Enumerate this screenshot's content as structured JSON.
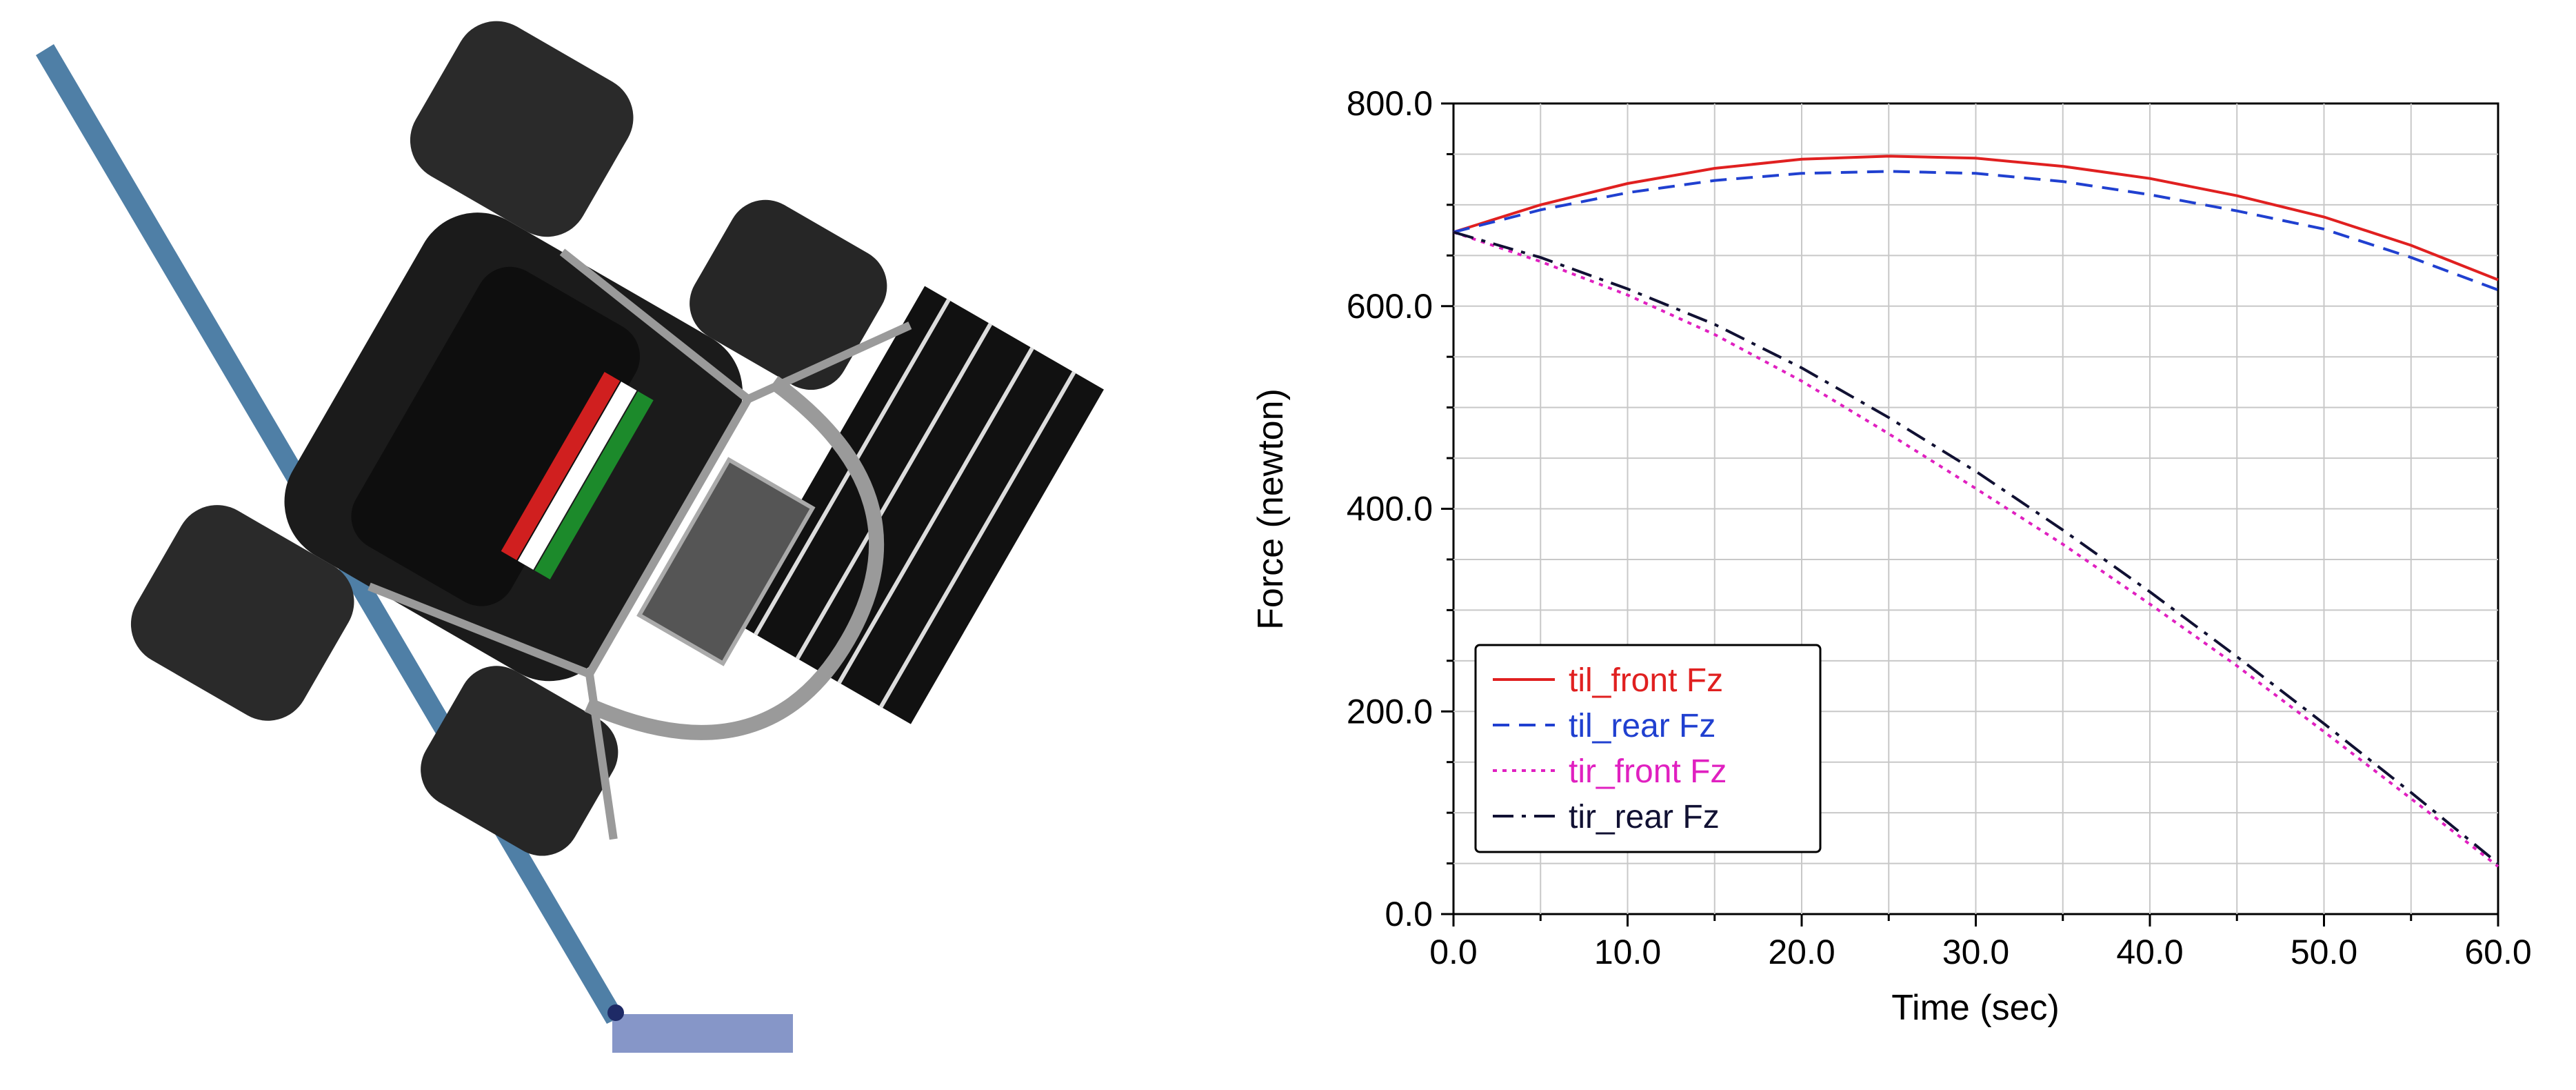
{
  "illustration": {
    "name": "tilted-vehicle-rendering",
    "colors": {
      "ramp": "#4f7fa6",
      "ground_block": "#8696c8",
      "body": "#1b1b1b",
      "frame": "#9a9a9a",
      "stripe_red": "#d01f1f",
      "stripe_white": "#ffffff",
      "stripe_green": "#1c8a2b"
    }
  },
  "chart_data": {
    "type": "line",
    "title": "",
    "xlabel": "Time (sec)",
    "ylabel": "Force (newton)",
    "xlim": [
      0,
      60
    ],
    "ylim": [
      0,
      800
    ],
    "x_ticks": [
      "0.0",
      "10.0",
      "20.0",
      "30.0",
      "40.0",
      "50.0",
      "60.0"
    ],
    "y_ticks": [
      "0.0",
      "200.0",
      "400.0",
      "600.0",
      "800.0"
    ],
    "grid": true,
    "legend_position": "bottom-left",
    "x": [
      0,
      5,
      10,
      15,
      20,
      25,
      30,
      35,
      40,
      45,
      50,
      55,
      60
    ],
    "series": [
      {
        "name": "til_front Fz",
        "color": "#e02020",
        "dash": "solid",
        "values": [
          673,
          700,
          721,
          736,
          745,
          748,
          746,
          738,
          726,
          709,
          688,
          660,
          626
        ]
      },
      {
        "name": "til_rear Fz",
        "color": "#2040d0",
        "dash": "dashed",
        "values": [
          673,
          695,
          712,
          724,
          731,
          733,
          731,
          723,
          710,
          694,
          676,
          648,
          616
        ]
      },
      {
        "name": "tir_front Fz",
        "color": "#e020c0",
        "dash": "dotted",
        "values": [
          673,
          644,
          611,
          572,
          526,
          474,
          420,
          365,
          306,
          245,
          180,
          114,
          47
        ]
      },
      {
        "name": "tir_rear Fz",
        "color": "#111133",
        "dash": "dashdot",
        "values": [
          673,
          648,
          617,
          582,
          539,
          490,
          437,
          379,
          318,
          254,
          188,
          120,
          50
        ]
      }
    ]
  }
}
